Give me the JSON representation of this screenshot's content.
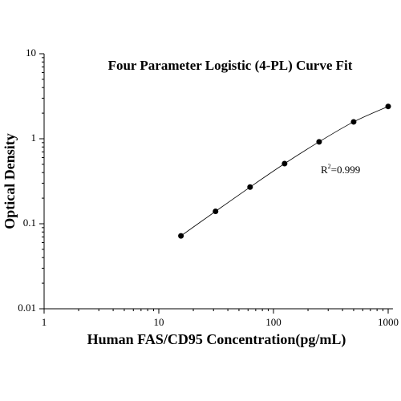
{
  "chart_data": {
    "type": "scatter",
    "title": "Four Parameter Logistic (4-PL) Curve Fit",
    "x_label": "Human FAS/CD95 Concentration(pg/mL)",
    "y_label": "Optical Density",
    "x": [
      15.6,
      31.25,
      62.5,
      125,
      250,
      500,
      1000
    ],
    "series": [
      {
        "color": "#000000",
        "values": [
          0.072,
          0.14,
          0.27,
          0.51,
          0.92,
          1.58,
          2.4
        ]
      }
    ],
    "x_log": true,
    "y_log": true,
    "xlim": [
      1,
      1100
    ],
    "ylim": [
      0.01,
      10
    ],
    "xticks": [
      1,
      10,
      100,
      1000
    ],
    "yticks": [
      0.01,
      0.1,
      1,
      10
    ],
    "annotation": {
      "base": "R",
      "sup": "2",
      "rest": "=0.999"
    }
  }
}
